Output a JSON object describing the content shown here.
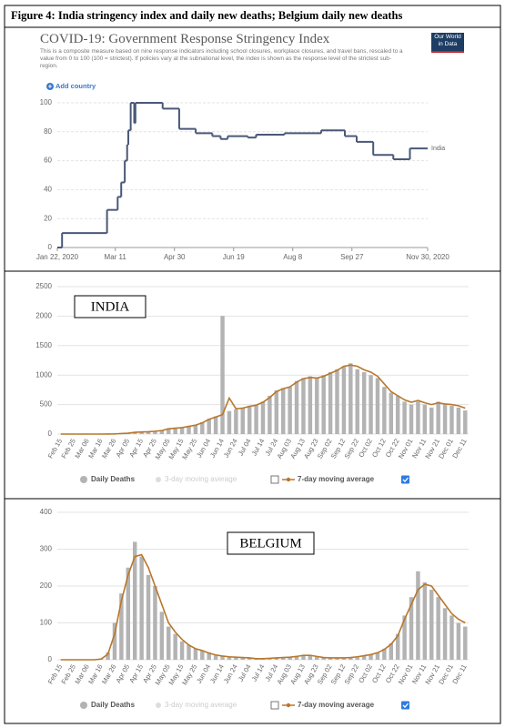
{
  "title": "Figure 4: India stringency index and daily new deaths; Belgium daily new deaths",
  "chart_data": [
    {
      "type": "line",
      "title": "COVID-19: Government Response Stringency Index",
      "subtitle": "This is a composite measure based on nine response indicators including school closures, workplace closures, and travel bans, rescaled to a value from 0 to 100 (100 = strictest). If policies vary at the subnational level, the index is shown as the response level of the strictest sub-region.",
      "button": "Add country",
      "logo": "Our World in Data",
      "x": [
        "2020-01-22",
        "2020-01-26",
        "2020-03-04",
        "2020-03-13",
        "2020-03-16",
        "2020-03-19",
        "2020-03-21",
        "2020-03-22",
        "2020-03-24",
        "2020-03-27",
        "2020-03-28",
        "2020-04-20",
        "2020-05-04",
        "2020-05-18",
        "2020-06-01",
        "2020-06-08",
        "2020-06-14",
        "2020-07-01",
        "2020-07-08",
        "2020-08-01",
        "2020-09-01",
        "2020-09-21",
        "2020-10-01",
        "2020-10-15",
        "2020-11-01",
        "2020-11-15"
      ],
      "series": [
        {
          "name": "India",
          "color": "#4a5878",
          "values": [
            0,
            10,
            26,
            35,
            45,
            60,
            71,
            81,
            100,
            86,
            100,
            96,
            82,
            79,
            77,
            75,
            77,
            76,
            78,
            79,
            81,
            77,
            73,
            64,
            61,
            68.5
          ]
        }
      ],
      "xlim": [
        "2020-01-22",
        "2020-11-30"
      ],
      "xticks": [
        {
          "value": "2020-01-22",
          "label": "Jan 22, 2020"
        },
        {
          "value": "2020-03-11",
          "label": "Mar 11"
        },
        {
          "value": "2020-04-30",
          "label": "Apr 30"
        },
        {
          "value": "2020-06-19",
          "label": "Jun 19"
        },
        {
          "value": "2020-08-08",
          "label": "Aug 8"
        },
        {
          "value": "2020-09-27",
          "label": "Sep 27"
        },
        {
          "value": "2020-11-30",
          "label": "Nov 30, 2020"
        }
      ],
      "ylim": [
        0,
        100
      ],
      "yticks": [
        0,
        20,
        40,
        60,
        80,
        100
      ],
      "grid": true
    },
    {
      "type": "bar",
      "annotation": "INDIA",
      "categories": [
        "Feb 15",
        null,
        "Feb 25",
        null,
        "Mar 06",
        null,
        "Mar 16",
        null,
        "Mar 26",
        null,
        "Apr 05",
        null,
        "Apr 15",
        null,
        "Apr 25",
        null,
        "May 05",
        null,
        "May 15",
        null,
        "May 25",
        null,
        "Jun 04",
        null,
        "Jun 14",
        null,
        "Jun 24",
        null,
        "Jul 04",
        null,
        "Jul 14",
        null,
        "Jul 24",
        null,
        "Aug 03",
        null,
        "Aug 13",
        null,
        "Aug 23",
        null,
        "Sep 02",
        null,
        "Sep 12",
        null,
        "Sep 22",
        null,
        "Oct 02",
        null,
        "Oct 12",
        null,
        "Oct 22",
        null,
        "Nov 01",
        null,
        "Nov 11",
        null,
        "Nov 21",
        null,
        "Dec 01",
        null,
        "Dec 11"
      ],
      "series": [
        {
          "name": "Daily Deaths",
          "type": "bar",
          "color": "#b3b3b3",
          "values": [
            0,
            0,
            0,
            0,
            0,
            0,
            1,
            2,
            4,
            10,
            20,
            35,
            40,
            45,
            50,
            70,
            100,
            110,
            120,
            140,
            160,
            200,
            260,
            300,
            2003,
            390,
            420,
            450,
            480,
            500,
            550,
            650,
            740,
            780,
            800,
            900,
            950,
            980,
            950,
            1000,
            1050,
            1100,
            1150,
            1200,
            1100,
            1050,
            1000,
            950,
            800,
            700,
            650,
            550,
            500,
            550,
            500,
            450,
            550,
            500,
            480,
            450,
            400
          ]
        },
        {
          "name": "7-day moving average",
          "type": "line",
          "color": "#b8772b",
          "values": [
            0,
            0,
            0,
            0,
            0,
            0,
            0,
            1,
            3,
            8,
            15,
            30,
            35,
            40,
            48,
            60,
            90,
            100,
            110,
            130,
            150,
            190,
            250,
            290,
            330,
            610,
            430,
            440,
            470,
            490,
            540,
            620,
            720,
            770,
            800,
            880,
            940,
            960,
            950,
            980,
            1030,
            1080,
            1150,
            1170,
            1150,
            1090,
            1050,
            980,
            850,
            720,
            650,
            580,
            540,
            570,
            530,
            500,
            530,
            510,
            500,
            480,
            440
          ]
        }
      ],
      "legend_extra": "3-day moving average",
      "ylim": [
        0,
        2500
      ],
      "yticks": [
        0,
        500,
        1000,
        1500,
        2000,
        2500
      ],
      "grid": true
    },
    {
      "type": "bar",
      "annotation": "BELGIUM",
      "categories": [
        "Feb 15",
        null,
        "Feb 25",
        null,
        "Mar 06",
        null,
        "Mar 16",
        null,
        "Mar 26",
        null,
        "Apr 05",
        null,
        "Apr 15",
        null,
        "Apr 25",
        null,
        "May 05",
        null,
        "May 15",
        null,
        "May 25",
        null,
        "Jun 04",
        null,
        "Jun 14",
        null,
        "Jun 24",
        null,
        "Jul 04",
        null,
        "Jul 14",
        null,
        "Jul 24",
        null,
        "Aug 03",
        null,
        "Aug 13",
        null,
        "Aug 23",
        null,
        "Sep 02",
        null,
        "Sep 12",
        null,
        "Sep 22",
        null,
        "Oct 02",
        null,
        "Oct 12",
        null,
        "Oct 22",
        null,
        "Nov 01",
        null,
        "Nov 11",
        null,
        "Nov 21",
        null,
        "Dec 01",
        null,
        "Dec 11"
      ],
      "series": [
        {
          "name": "Daily Deaths",
          "type": "bar",
          "color": "#b3b3b3",
          "values": [
            0,
            0,
            0,
            0,
            0,
            0,
            3,
            20,
            100,
            180,
            250,
            320,
            280,
            230,
            200,
            130,
            90,
            70,
            50,
            40,
            30,
            25,
            20,
            12,
            10,
            8,
            7,
            5,
            4,
            3,
            3,
            4,
            5,
            6,
            7,
            9,
            10,
            12,
            8,
            6,
            5,
            4,
            5,
            6,
            8,
            10,
            14,
            20,
            30,
            45,
            70,
            120,
            170,
            240,
            210,
            190,
            170,
            140,
            120,
            100,
            90
          ]
        },
        {
          "name": "7-day moving average",
          "type": "line",
          "color": "#b8772b",
          "values": [
            0,
            0,
            0,
            0,
            0,
            0,
            2,
            15,
            70,
            160,
            230,
            280,
            285,
            250,
            200,
            150,
            100,
            75,
            55,
            40,
            30,
            25,
            18,
            13,
            10,
            8,
            7,
            6,
            5,
            3,
            3,
            4,
            5,
            6,
            7,
            9,
            12,
            12,
            9,
            6,
            5,
            5,
            5,
            6,
            8,
            11,
            14,
            19,
            28,
            42,
            65,
            110,
            150,
            190,
            205,
            200,
            175,
            150,
            125,
            110,
            100
          ]
        }
      ],
      "legend_extra": "3-day moving average",
      "ylim": [
        0,
        400
      ],
      "yticks": [
        0,
        100,
        200,
        300,
        400
      ],
      "grid": true
    }
  ]
}
